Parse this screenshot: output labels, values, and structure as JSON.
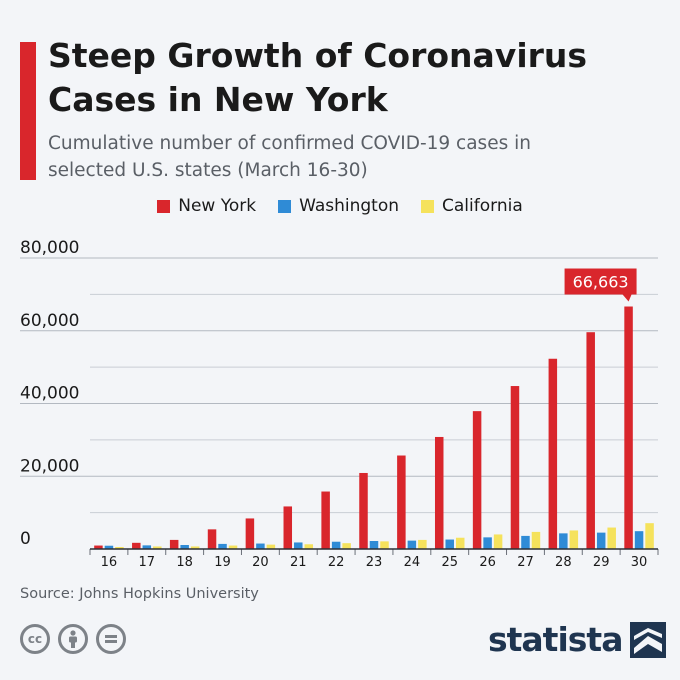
{
  "header": {
    "title": "Steep Growth of Coronavirus Cases in New York",
    "subtitle": "Cumulative number of confirmed COVID-19 cases in selected U.S. states (March 16-30)"
  },
  "legend": [
    {
      "label": "New York",
      "color": "#d9262c"
    },
    {
      "label": "Washington",
      "color": "#2f8bd6"
    },
    {
      "label": "California",
      "color": "#f5e25c"
    }
  ],
  "chart_data": {
    "type": "bar",
    "categories": [
      "16",
      "17",
      "18",
      "19",
      "20",
      "21",
      "22",
      "23",
      "24",
      "25",
      "26",
      "27",
      "28",
      "29",
      "30"
    ],
    "series": [
      {
        "name": "New York",
        "color": "#d9262c",
        "values": [
          950,
          1700,
          2500,
          5400,
          8400,
          11700,
          15800,
          20900,
          25700,
          30800,
          37900,
          44800,
          52300,
          59600,
          66663
        ]
      },
      {
        "name": "Washington",
        "color": "#2f8bd6",
        "values": [
          900,
          1000,
          1100,
          1400,
          1500,
          1800,
          2000,
          2200,
          2300,
          2600,
          3200,
          3600,
          4300,
          4500,
          4900
        ]
      },
      {
        "name": "California",
        "color": "#f5e25c",
        "values": [
          550,
          700,
          700,
          950,
          1200,
          1300,
          1600,
          2100,
          2500,
          3100,
          4000,
          4700,
          5100,
          5900,
          7100
        ]
      }
    ],
    "yticks": [
      0,
      20000,
      40000,
      60000,
      80000
    ],
    "ytick_labels": [
      "0",
      "20,000",
      "40,000",
      "60,000",
      "80,000"
    ],
    "ylim": [
      0,
      80000
    ],
    "grid": true,
    "annotation": {
      "category": "30",
      "series": "New York",
      "text": "66,663"
    }
  },
  "footer": {
    "source": "Source: Johns Hopkins University",
    "brand": "statista",
    "license_icons": [
      "creative-commons-icon",
      "attribution-icon",
      "no-derivatives-icon"
    ]
  }
}
